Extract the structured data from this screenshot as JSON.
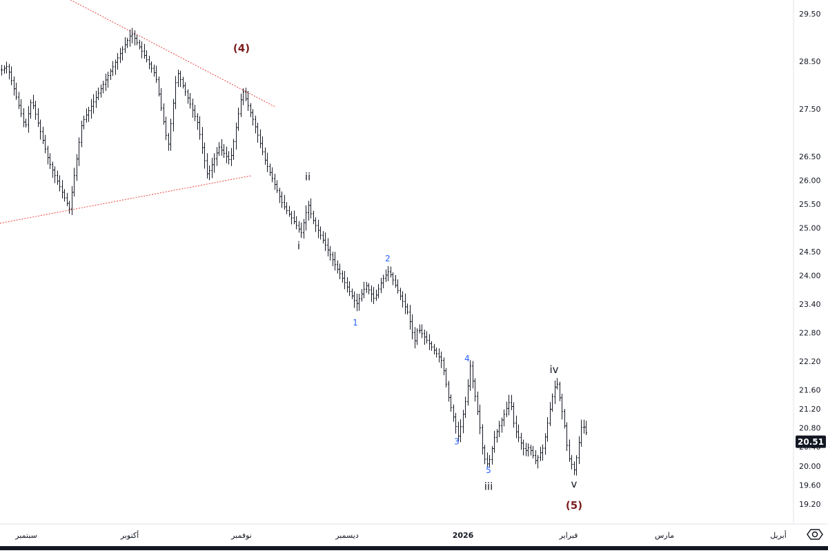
{
  "chart_data": {
    "type": "ohlc-bar",
    "y_axis": {
      "side": "right",
      "ticks": [
        29.5,
        28.5,
        27.5,
        26.5,
        26.0,
        25.5,
        25.0,
        24.5,
        24.0,
        23.4,
        22.8,
        22.2,
        21.6,
        21.2,
        20.8,
        20.4,
        20.0,
        19.6,
        19.2
      ],
      "ylim": [
        19.05,
        29.75
      ]
    },
    "x_axis": {
      "labels": [
        "سبتمبر",
        "أكتوبر",
        "نوفمبر",
        "ديسمبر",
        "2026",
        "فبراير",
        "مارس",
        "أبريل"
      ]
    },
    "last_price": {
      "value": 20.51,
      "label": "20.51"
    },
    "pivots": [
      28.3,
      28.4,
      27.1,
      27.7,
      26.4,
      25.4,
      27.2,
      29.1,
      28.2,
      27.6,
      26.7,
      28.3,
      27.2,
      26.1,
      26.7,
      26.4,
      27.9,
      27.2,
      26.4,
      25.5,
      24.9,
      25.5,
      25.2,
      24.2,
      23.4,
      23.8,
      23.5,
      23.9,
      24.1,
      23.2,
      22.6,
      22.9,
      22.2,
      21.4,
      20.6,
      21.5,
      22.1,
      21.1,
      20.8,
      20.2,
      20.0,
      20.6,
      21.4,
      20.8,
      20.3,
      20.4,
      20.1,
      20.4,
      21.4,
      21.8,
      20.9,
      20.2,
      19.9,
      20.9,
      20.6
    ],
    "wave_labels": [
      {
        "text": "(4)",
        "price": 28.7,
        "color": "#7b1f1f"
      },
      {
        "text": "ii",
        "price": 26.0,
        "color": "#131722"
      },
      {
        "text": "i",
        "price": 24.55,
        "color": "#131722"
      },
      {
        "text": "2",
        "price": 24.3,
        "color": "#2962ff"
      },
      {
        "text": "1",
        "price": 22.95,
        "color": "#2962ff"
      },
      {
        "text": "4",
        "price": 22.2,
        "color": "#2962ff"
      },
      {
        "text": "iv",
        "price": 21.95,
        "color": "#131722"
      },
      {
        "text": "3",
        "price": 20.45,
        "color": "#2962ff"
      },
      {
        "text": "5",
        "price": 19.85,
        "color": "#2962ff"
      },
      {
        "text": "iii",
        "price": 19.5,
        "color": "#131722"
      },
      {
        "text": "v",
        "price": 19.55,
        "color": "#131722"
      },
      {
        "text": "(5)",
        "price": 19.1,
        "color": "#7b1f1f"
      }
    ],
    "trendlines": [
      {
        "name": "upper",
        "from_price": 29.9,
        "to_price": 27.55,
        "color": "#e8403a"
      },
      {
        "name": "lower",
        "from_price": 25.1,
        "to_price": 26.1,
        "color": "#e8403a"
      }
    ],
    "colors": {
      "bars": "#131722",
      "trendline": "#e8403a",
      "axis_text": "#131722",
      "last_price_bg": "#131722",
      "last_price_text": "#ffffff",
      "corrective_label": "#7b1f1f",
      "minor_label": "#2962ff"
    },
    "icons": {
      "settings": "settings-icon"
    },
    "grid": false,
    "title": "",
    "xlabel": "",
    "ylabel": ""
  }
}
